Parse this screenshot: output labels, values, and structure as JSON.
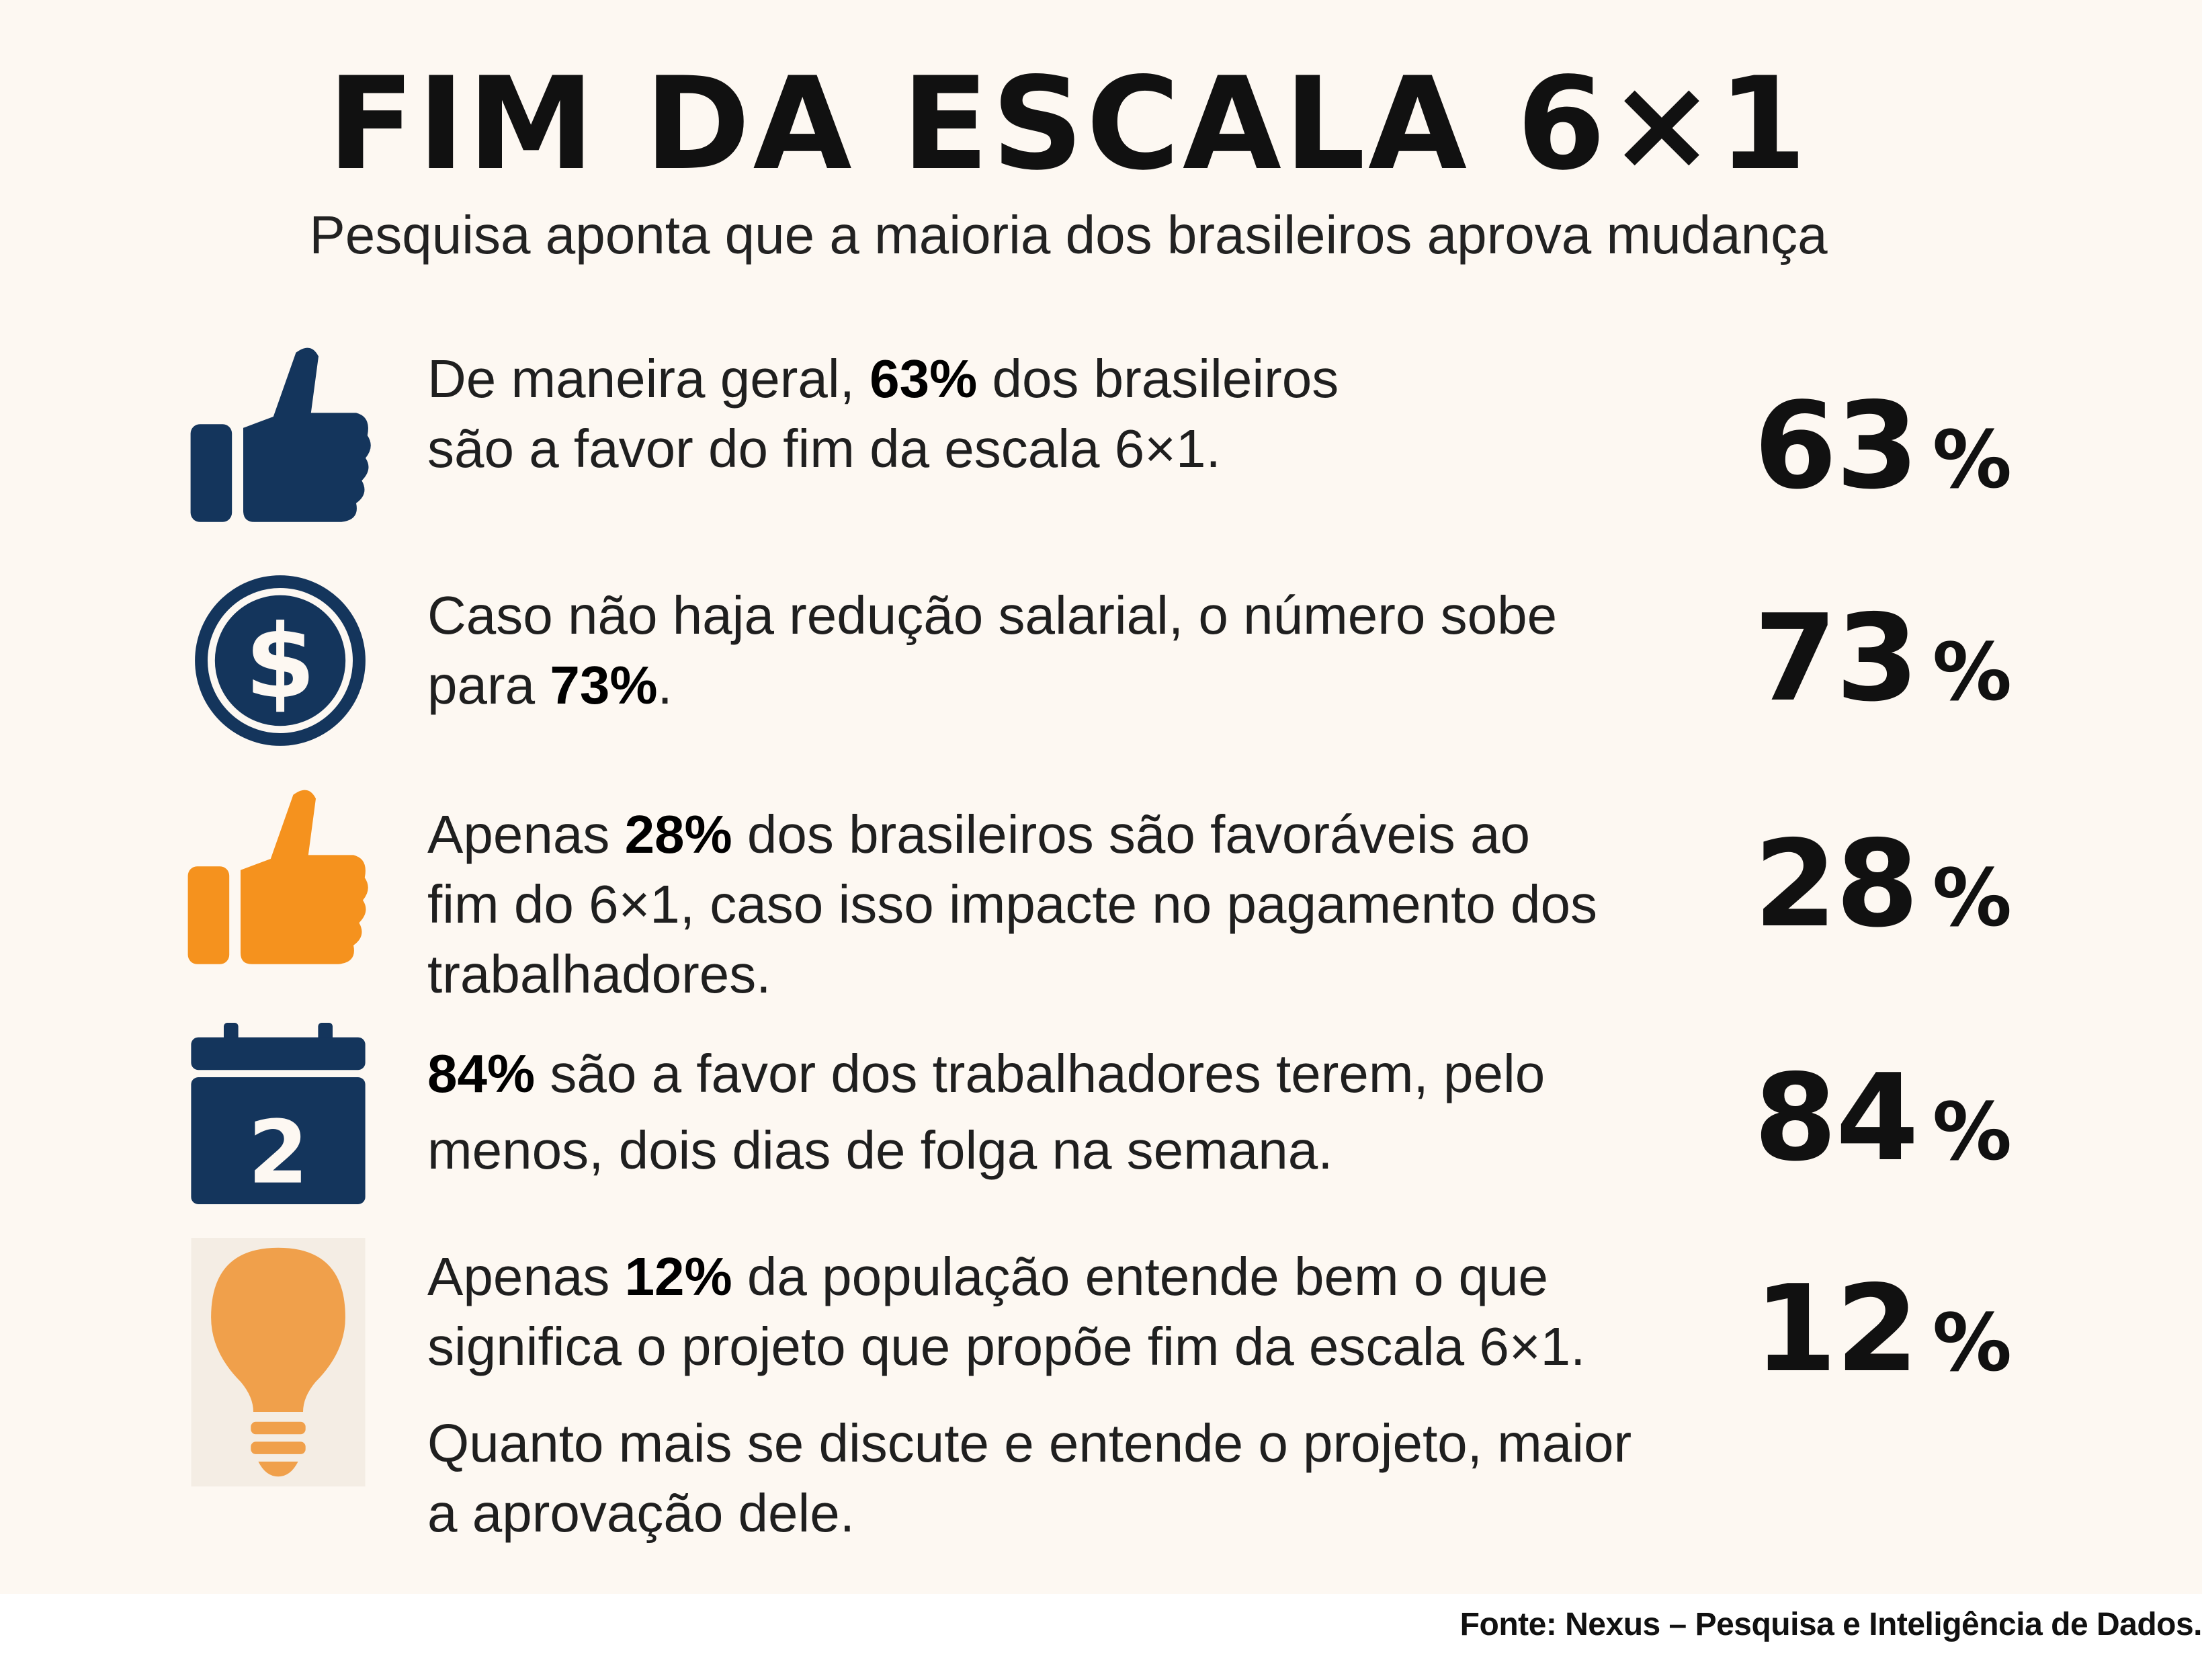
{
  "title": "FIM DA ESCALA 6×1",
  "subtitle": "Pesquisa aponta que a maioria dos brasileiros aprova mudança",
  "colors": {
    "navy": "#14355c",
    "orange": "#f5921e",
    "light_orange": "#f0a04b",
    "background": "#fdf8f2"
  },
  "items": [
    {
      "icon": "thumbs-up-icon",
      "line1_pre": "De maneira geral, ",
      "line1_bold": "63%",
      "line1_post": " dos brasileiros",
      "line2": "são a favor do fim da escala 6×1.",
      "stat_value": "63",
      "stat_unit": "%"
    },
    {
      "icon": "dollar-coin-icon",
      "line1": "Caso não haja redução salarial, o número sobe",
      "line2_pre": "para ",
      "line2_bold": "73%",
      "line2_post": ".",
      "stat_value": "73",
      "stat_unit": "%"
    },
    {
      "icon": "thumbs-up-icon",
      "line1_pre": "Apenas ",
      "line1_bold": "28%",
      "line1_post": " dos brasileiros são favoráveis ao",
      "line2": "fim do 6×1, caso isso impacte no pagamento dos",
      "line3": "trabalhadores.",
      "stat_value": "28",
      "stat_unit": "%"
    },
    {
      "icon": "calendar-icon",
      "calendar_day": "2",
      "line1_bold": "84%",
      "line1_post": " são a favor dos trabalhadores terem, pelo",
      "line2": "menos, dois dias de folga na semana.",
      "stat_value": "84",
      "stat_unit": "%"
    },
    {
      "icon": "light-bulb-icon",
      "line1_pre": "Apenas ",
      "line1_bold": "12%",
      "line1_post": " da população entende bem o que",
      "line2": "significa o projeto que propõe fim da escala 6×1.",
      "line3": "Quanto mais se discute e entende o projeto, maior",
      "line4": "a aprovação dele.",
      "stat_value": "12",
      "stat_unit": "%"
    }
  ],
  "source": "Fonte: Nexus – Pesquisa e Inteligência de Dados."
}
